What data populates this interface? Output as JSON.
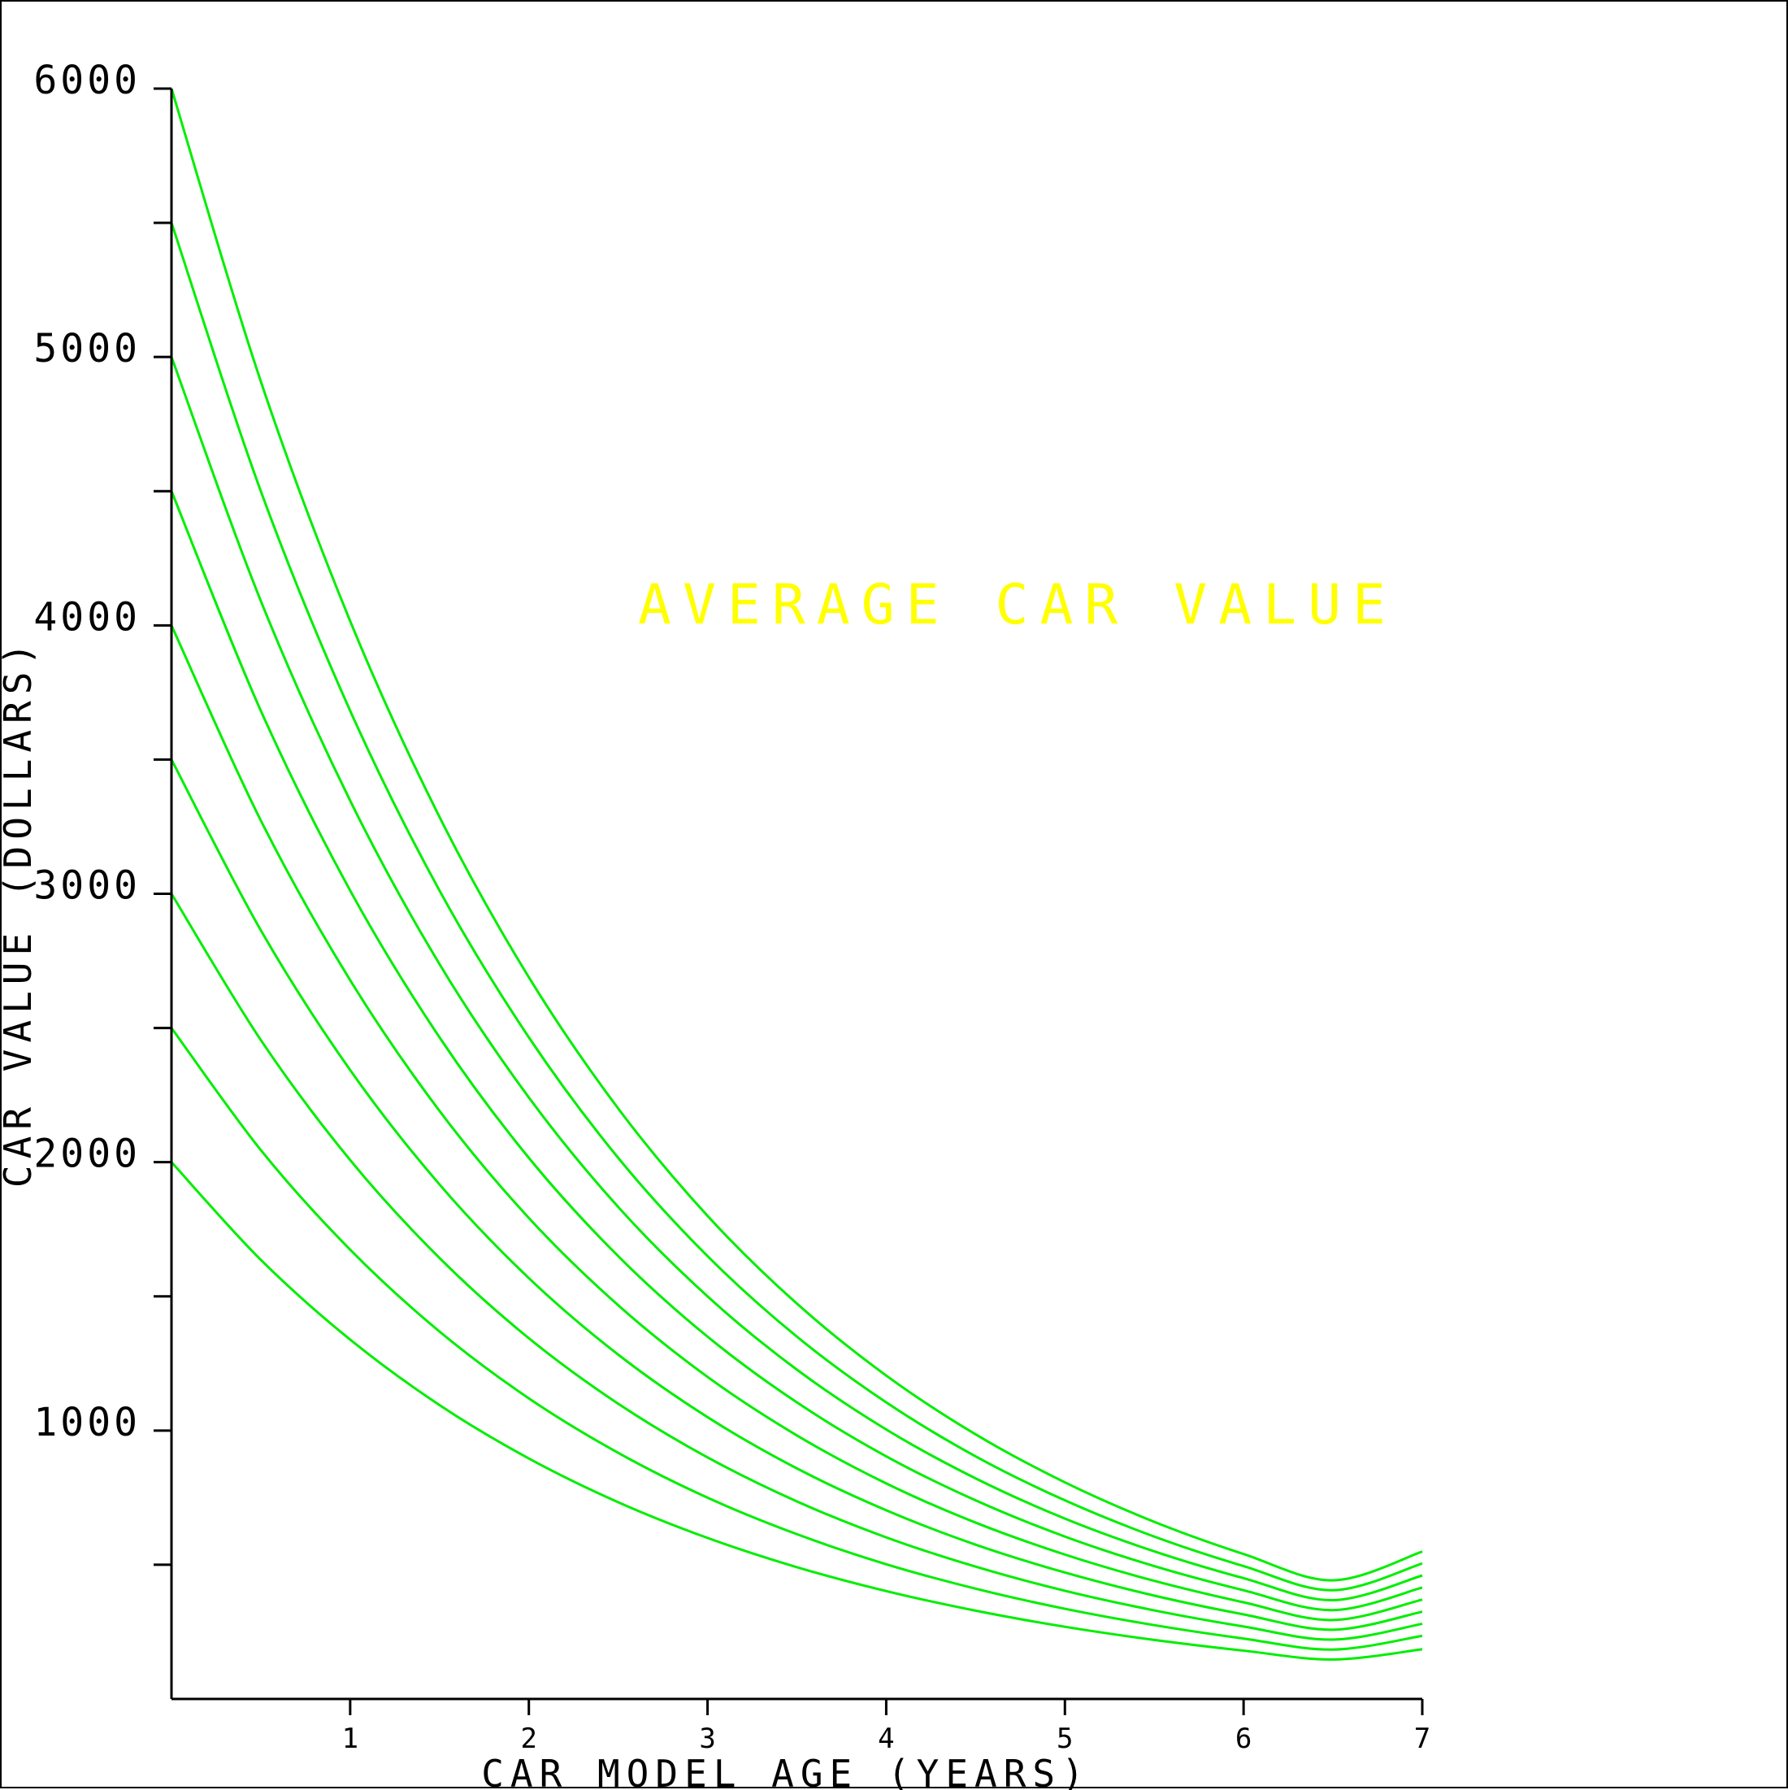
{
  "chart_data": {
    "type": "line",
    "title": "AVERAGE CAR VALUE",
    "xlabel": "CAR MODEL AGE (YEARS)",
    "ylabel": "CAR VALUE (DOLLARS)",
    "xlim": [
      0,
      7
    ],
    "ylim": [
      0,
      6000
    ],
    "x_ticks": [
      1,
      2,
      3,
      4,
      5,
      6,
      7
    ],
    "x_tick_labels": [
      "1",
      "2",
      "3",
      "4",
      "5",
      "6",
      "7"
    ],
    "y_ticks": [
      500,
      1000,
      1500,
      2000,
      2500,
      3000,
      3500,
      4000,
      4500,
      5000,
      5500,
      6000
    ],
    "y_tick_labels": [
      "1000",
      "2000",
      "3000",
      "4000",
      "5000",
      "6000"
    ],
    "y_labeled_ticks": [
      1000,
      2000,
      3000,
      4000,
      5000,
      6000
    ],
    "grid": false,
    "x": [
      0,
      0.5,
      1,
      1.5,
      2,
      2.5,
      3,
      3.5,
      4,
      4.5,
      5,
      5.5,
      6,
      6.5,
      7
    ],
    "series": [
      {
        "values": [
          6000,
          4909,
          4016,
          3286,
          2689,
          2200,
          1800,
          1473,
          1205,
          986,
          807,
          660,
          540,
          442,
          549
        ]
      },
      {
        "values": [
          5500,
          4500,
          3682,
          3012,
          2465,
          2016,
          1650,
          1350,
          1105,
          904,
          740,
          605,
          495,
          405,
          505
        ]
      },
      {
        "values": [
          5000,
          4091,
          3347,
          2738,
          2241,
          1833,
          1500,
          1227,
          1004,
          822,
          672,
          550,
          450,
          368,
          460
        ]
      },
      {
        "values": [
          4500,
          3682,
          3012,
          2465,
          2016,
          1650,
          1350,
          1105,
          904,
          740,
          605,
          495,
          405,
          331,
          415
        ]
      },
      {
        "values": [
          4000,
          3273,
          2678,
          2191,
          1792,
          1467,
          1200,
          982,
          803,
          657,
          538,
          440,
          360,
          294,
          370
        ]
      },
      {
        "values": [
          3500,
          2864,
          2343,
          1917,
          1568,
          1283,
          1050,
          859,
          703,
          575,
          471,
          385,
          315,
          258,
          325
        ]
      },
      {
        "values": [
          3000,
          2455,
          2008,
          1643,
          1344,
          1100,
          900,
          736,
          602,
          493,
          403,
          330,
          270,
          221,
          280
        ]
      },
      {
        "values": [
          2500,
          2045,
          1674,
          1369,
          1120,
          917,
          750,
          614,
          502,
          411,
          336,
          275,
          225,
          184,
          235
        ]
      },
      {
        "values": [
          2000,
          1636,
          1339,
          1095,
          896,
          733,
          600,
          491,
          402,
          329,
          269,
          220,
          180,
          147,
          185
        ]
      }
    ],
    "colors": {
      "lines": "#00ee00",
      "title": "#ffff00",
      "axes": "#000000",
      "background": "#ffffff"
    }
  }
}
